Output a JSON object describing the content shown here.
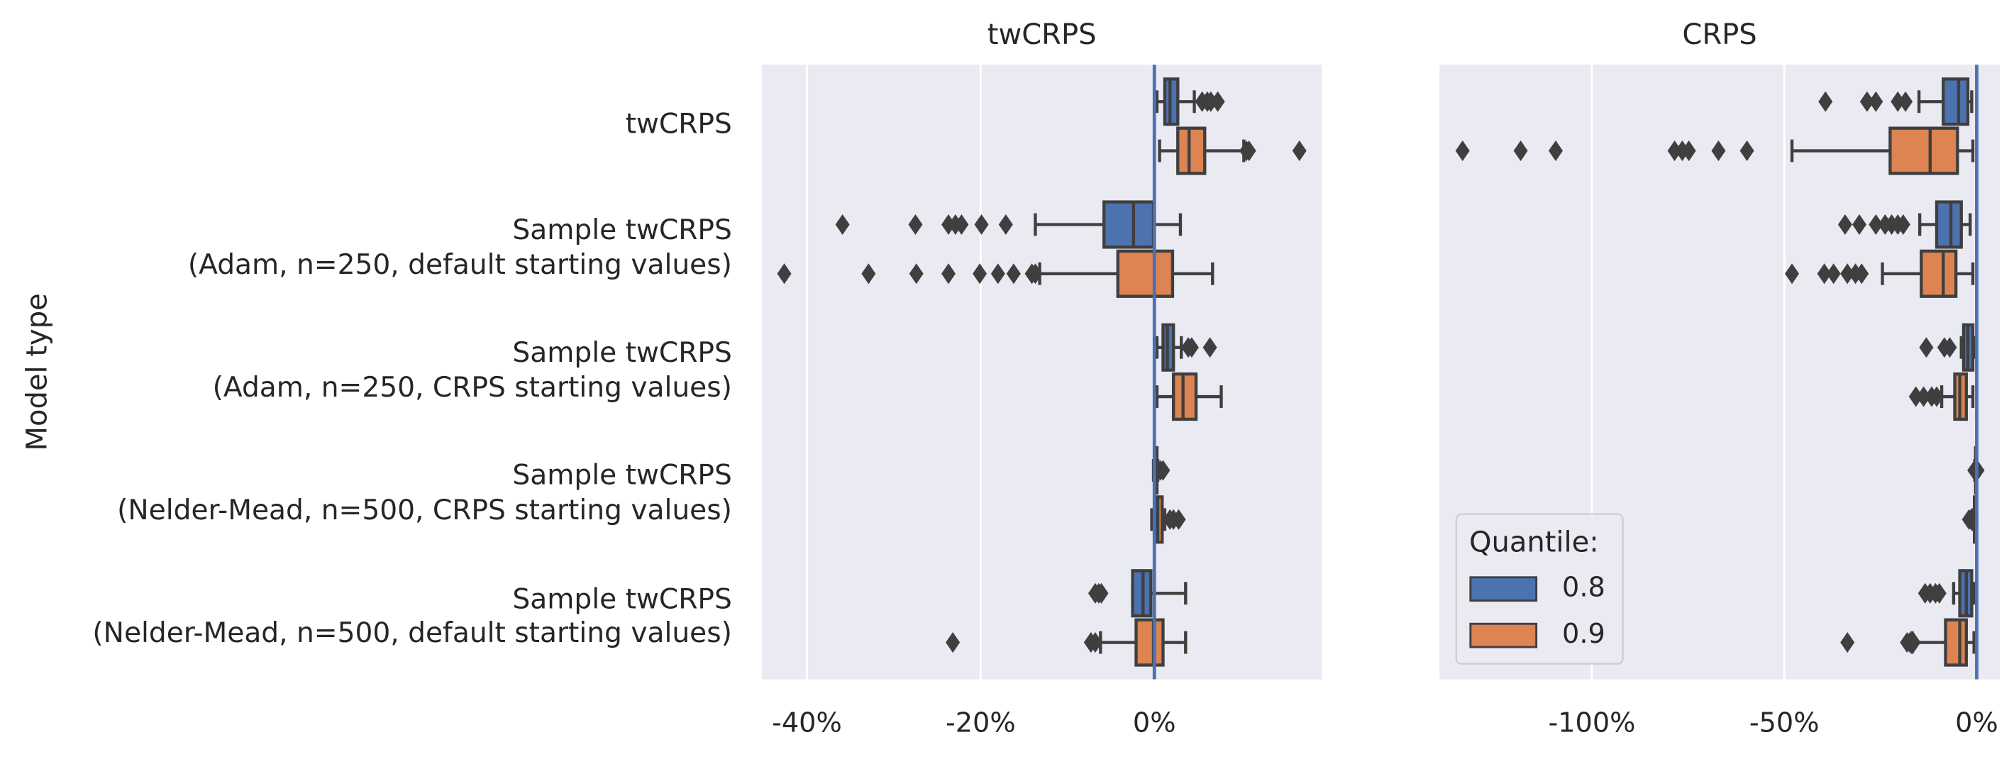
{
  "chart_data": [
    {
      "type": "box",
      "title": "twCRPS",
      "ylabel": "Model type",
      "categories": [
        "twCRPS",
        "Sample twCRPS\n(Adam, n=250, default starting values)",
        "Sample twCRPS\n(Adam, n=250, CRPS starting values)",
        "Sample twCRPS\n(Nelder-Mead, n=500, CRPS starting values)",
        "Sample twCRPS\n(Nelder-Mead, n=500, default starting values)"
      ],
      "xlim": [
        -45.2,
        19.3
      ],
      "xticks": [
        {
          "value": -40,
          "label": "-40%"
        },
        {
          "value": -20,
          "label": "-20%"
        },
        {
          "value": 0,
          "label": "0%"
        }
      ],
      "grid": true,
      "reference_line": {
        "value": 0,
        "color": "#4a70b6"
      },
      "series": [
        {
          "color": "#4c72b0",
          "values": [
            {
              "whislo": 0.3,
              "q1": 1.2,
              "med": 1.8,
              "q3": 2.7,
              "whishi": 4.6,
              "fliers": [
                5.5,
                6.1,
                6.5,
                7.3
              ]
            },
            {
              "whislo": -13.7,
              "q1": -5.8,
              "med": -2.4,
              "q3": -0.1,
              "whishi": 3.0,
              "fliers": [
                -35.9,
                -27.5,
                -23.7,
                -22.9,
                -22.2,
                -19.9,
                -17.1
              ]
            },
            {
              "whislo": 0.3,
              "q1": 1.0,
              "med": 1.5,
              "q3": 2.2,
              "whishi": 3.1,
              "fliers": [
                3.9,
                4.3,
                6.4
              ]
            },
            {
              "whislo": -0.1,
              "q1": 0.0,
              "med": 0.1,
              "q3": 0.3,
              "whishi": 0.4,
              "fliers": [
                0.7,
                1.0
              ]
            },
            {
              "whislo": -2.5,
              "q1": -2.5,
              "med": -1.3,
              "q3": -0.4,
              "whishi": 3.6,
              "fliers": [
                -6.8,
                -6.4,
                -6.1
              ]
            }
          ]
        },
        {
          "color": "#dd8452",
          "values": [
            {
              "whislo": 0.6,
              "q1": 2.7,
              "med": 4.0,
              "q3": 5.8,
              "whishi": 10.3,
              "fliers": [
                10.6,
                10.9,
                16.7
              ]
            },
            {
              "whislo": -13.2,
              "q1": -4.2,
              "med": 0.0,
              "q3": 2.1,
              "whishi": 6.7,
              "fliers": [
                -42.6,
                -32.9,
                -27.4,
                -23.7,
                -20.1,
                -18.0,
                -16.2,
                -14.1,
                -13.7
              ]
            },
            {
              "whislo": 0.3,
              "q1": 2.2,
              "med": 3.3,
              "q3": 4.8,
              "whishi": 7.7,
              "fliers": []
            },
            {
              "whislo": -0.3,
              "q1": 0.1,
              "med": 0.4,
              "q3": 0.9,
              "whishi": 1.2,
              "fliers": [
                1.8,
                2.2,
                2.8
              ]
            },
            {
              "whislo": -6.2,
              "q1": -2.1,
              "med": -0.1,
              "q3": 1.0,
              "whishi": 3.6,
              "fliers": [
                -23.2,
                -7.3,
                -6.8
              ]
            }
          ]
        }
      ]
    },
    {
      "type": "box",
      "title": "CRPS",
      "xlim": [
        -139.6,
        6.0
      ],
      "xticks": [
        {
          "value": -100,
          "label": "-100%"
        },
        {
          "value": -50,
          "label": "-50%"
        },
        {
          "value": 0,
          "label": "0%"
        }
      ],
      "grid": true,
      "reference_line": {
        "value": 0,
        "color": "#4a70b6"
      },
      "legend": {
        "title": "Quantile:",
        "loc": "lower left"
      },
      "series": [
        {
          "name": "0.8",
          "color": "#4c72b0",
          "values": [
            {
              "whislo": -15.0,
              "q1": -8.7,
              "med": -4.7,
              "q3": -2.3,
              "whishi": -1.3,
              "fliers": [
                -39.3,
                -28.5,
                -26.2,
                -20.5,
                -18.5
              ]
            },
            {
              "whislo": -14.8,
              "q1": -10.4,
              "med": -6.7,
              "q3": -4.0,
              "whishi": -1.7,
              "fliers": [
                -34.2,
                -30.5,
                -26.2,
                -23.8,
                -22.1,
                -20.5,
                -19.1
              ]
            },
            {
              "whislo": -4.0,
              "q1": -3.4,
              "med": -2.3,
              "q3": -1.0,
              "whishi": -0.7,
              "fliers": [
                -13.1,
                -8.4,
                -7.0
              ]
            },
            {
              "whislo": -0.5,
              "q1": -0.3,
              "med": -0.2,
              "q3": -0.1,
              "whishi": 0.0,
              "fliers": [
                -0.6,
                0.2
              ]
            },
            {
              "whislo": -6.0,
              "q1": -4.4,
              "med": -2.7,
              "q3": -1.3,
              "whishi": -0.7,
              "fliers": [
                -13.4,
                -12.1,
                -10.7,
                -9.7
              ]
            }
          ]
        },
        {
          "name": "0.9",
          "color": "#dd8452",
          "values": [
            {
              "whislo": -48.0,
              "q1": -22.5,
              "med": -12.1,
              "q3": -5.0,
              "whishi": -1.0,
              "fliers": [
                -133.6,
                -118.5,
                -109.4,
                -78.5,
                -76.5,
                -74.8,
                -67.1,
                -59.7
              ]
            },
            {
              "whislo": -24.5,
              "q1": -14.4,
              "med": -8.7,
              "q3": -5.4,
              "whishi": -1.0,
              "fliers": [
                -48.0,
                -39.6,
                -37.2,
                -33.6,
                -31.5,
                -29.9
              ]
            },
            {
              "whislo": -9.1,
              "q1": -5.7,
              "med": -4.4,
              "q3": -2.7,
              "whishi": -1.0,
              "fliers": [
                -15.8,
                -13.8,
                -11.7,
                -10.4
              ]
            },
            {
              "whislo": -1.0,
              "q1": -0.6,
              "med": -0.4,
              "q3": -0.2,
              "whishi": 0.0,
              "fliers": [
                -2.0,
                -1.5
              ]
            },
            {
              "whislo": -16.8,
              "q1": -8.1,
              "med": -4.4,
              "q3": -2.7,
              "whishi": -0.7,
              "fliers": [
                -33.6,
                -18.1,
                -17.4,
                -16.4
              ]
            }
          ]
        }
      ]
    }
  ]
}
